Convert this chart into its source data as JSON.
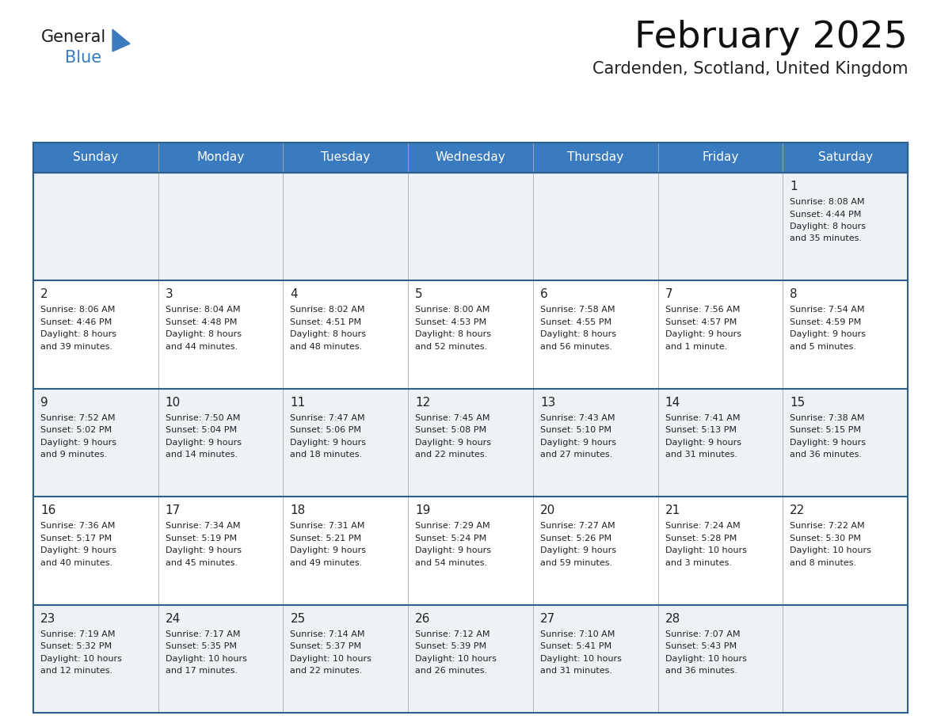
{
  "title": "February 2025",
  "subtitle": "Cardenden, Scotland, United Kingdom",
  "days_of_week": [
    "Sunday",
    "Monday",
    "Tuesday",
    "Wednesday",
    "Thursday",
    "Friday",
    "Saturday"
  ],
  "header_bg": "#3a7bbf",
  "header_text": "#ffffff",
  "row_bg_light": "#eef2f7",
  "row_bg_white": "#ffffff",
  "border_color": "#2e5f8a",
  "cell_border_color": "#cccccc",
  "text_color": "#222222",
  "calendar_data": [
    [
      null,
      null,
      null,
      null,
      null,
      null,
      {
        "day": 1,
        "sunrise": "8:08 AM",
        "sunset": "4:44 PM",
        "daylight": "8 hours",
        "daylight2": "and 35 minutes."
      }
    ],
    [
      {
        "day": 2,
        "sunrise": "8:06 AM",
        "sunset": "4:46 PM",
        "daylight": "8 hours",
        "daylight2": "and 39 minutes."
      },
      {
        "day": 3,
        "sunrise": "8:04 AM",
        "sunset": "4:48 PM",
        "daylight": "8 hours",
        "daylight2": "and 44 minutes."
      },
      {
        "day": 4,
        "sunrise": "8:02 AM",
        "sunset": "4:51 PM",
        "daylight": "8 hours",
        "daylight2": "and 48 minutes."
      },
      {
        "day": 5,
        "sunrise": "8:00 AM",
        "sunset": "4:53 PM",
        "daylight": "8 hours",
        "daylight2": "and 52 minutes."
      },
      {
        "day": 6,
        "sunrise": "7:58 AM",
        "sunset": "4:55 PM",
        "daylight": "8 hours",
        "daylight2": "and 56 minutes."
      },
      {
        "day": 7,
        "sunrise": "7:56 AM",
        "sunset": "4:57 PM",
        "daylight": "9 hours",
        "daylight2": "and 1 minute."
      },
      {
        "day": 8,
        "sunrise": "7:54 AM",
        "sunset": "4:59 PM",
        "daylight": "9 hours",
        "daylight2": "and 5 minutes."
      }
    ],
    [
      {
        "day": 9,
        "sunrise": "7:52 AM",
        "sunset": "5:02 PM",
        "daylight": "9 hours",
        "daylight2": "and 9 minutes."
      },
      {
        "day": 10,
        "sunrise": "7:50 AM",
        "sunset": "5:04 PM",
        "daylight": "9 hours",
        "daylight2": "and 14 minutes."
      },
      {
        "day": 11,
        "sunrise": "7:47 AM",
        "sunset": "5:06 PM",
        "daylight": "9 hours",
        "daylight2": "and 18 minutes."
      },
      {
        "day": 12,
        "sunrise": "7:45 AM",
        "sunset": "5:08 PM",
        "daylight": "9 hours",
        "daylight2": "and 22 minutes."
      },
      {
        "day": 13,
        "sunrise": "7:43 AM",
        "sunset": "5:10 PM",
        "daylight": "9 hours",
        "daylight2": "and 27 minutes."
      },
      {
        "day": 14,
        "sunrise": "7:41 AM",
        "sunset": "5:13 PM",
        "daylight": "9 hours",
        "daylight2": "and 31 minutes."
      },
      {
        "day": 15,
        "sunrise": "7:38 AM",
        "sunset": "5:15 PM",
        "daylight": "9 hours",
        "daylight2": "and 36 minutes."
      }
    ],
    [
      {
        "day": 16,
        "sunrise": "7:36 AM",
        "sunset": "5:17 PM",
        "daylight": "9 hours",
        "daylight2": "and 40 minutes."
      },
      {
        "day": 17,
        "sunrise": "7:34 AM",
        "sunset": "5:19 PM",
        "daylight": "9 hours",
        "daylight2": "and 45 minutes."
      },
      {
        "day": 18,
        "sunrise": "7:31 AM",
        "sunset": "5:21 PM",
        "daylight": "9 hours",
        "daylight2": "and 49 minutes."
      },
      {
        "day": 19,
        "sunrise": "7:29 AM",
        "sunset": "5:24 PM",
        "daylight": "9 hours",
        "daylight2": "and 54 minutes."
      },
      {
        "day": 20,
        "sunrise": "7:27 AM",
        "sunset": "5:26 PM",
        "daylight": "9 hours",
        "daylight2": "and 59 minutes."
      },
      {
        "day": 21,
        "sunrise": "7:24 AM",
        "sunset": "5:28 PM",
        "daylight": "10 hours",
        "daylight2": "and 3 minutes."
      },
      {
        "day": 22,
        "sunrise": "7:22 AM",
        "sunset": "5:30 PM",
        "daylight": "10 hours",
        "daylight2": "and 8 minutes."
      }
    ],
    [
      {
        "day": 23,
        "sunrise": "7:19 AM",
        "sunset": "5:32 PM",
        "daylight": "10 hours",
        "daylight2": "and 12 minutes."
      },
      {
        "day": 24,
        "sunrise": "7:17 AM",
        "sunset": "5:35 PM",
        "daylight": "10 hours",
        "daylight2": "and 17 minutes."
      },
      {
        "day": 25,
        "sunrise": "7:14 AM",
        "sunset": "5:37 PM",
        "daylight": "10 hours",
        "daylight2": "and 22 minutes."
      },
      {
        "day": 26,
        "sunrise": "7:12 AM",
        "sunset": "5:39 PM",
        "daylight": "10 hours",
        "daylight2": "and 26 minutes."
      },
      {
        "day": 27,
        "sunrise": "7:10 AM",
        "sunset": "5:41 PM",
        "daylight": "10 hours",
        "daylight2": "and 31 minutes."
      },
      {
        "day": 28,
        "sunrise": "7:07 AM",
        "sunset": "5:43 PM",
        "daylight": "10 hours",
        "daylight2": "and 36 minutes."
      },
      null
    ]
  ]
}
